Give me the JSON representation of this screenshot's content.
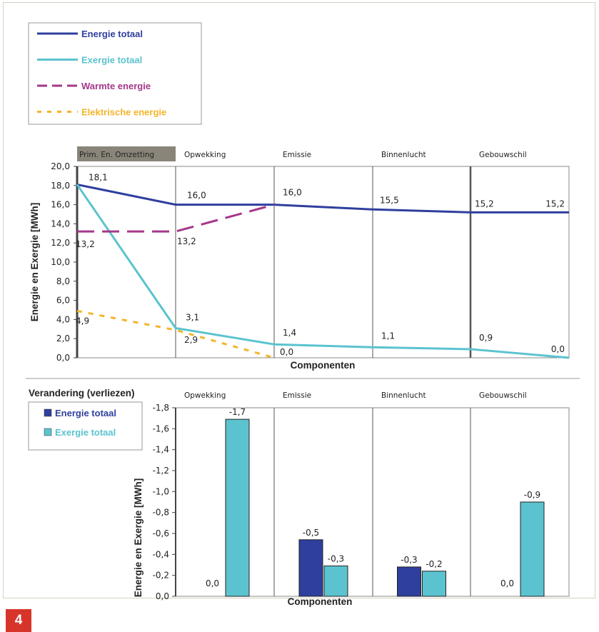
{
  "figure_number": "4",
  "colors": {
    "energie": "#2f3f9e",
    "exergie": "#5bc3cf",
    "warmte": "#a5378a",
    "elektrisch": "#f3b52a",
    "badge": "#d8352a",
    "header_box": "#8a8579"
  },
  "legend_top": [
    {
      "label": "Energie totaal",
      "color": "#2f3f9e",
      "style": "solid"
    },
    {
      "label": "Exergie totaal",
      "color": "#5bc3cf",
      "style": "solid"
    },
    {
      "label": "Warmte energie",
      "color": "#a5378a",
      "style": "dashed"
    },
    {
      "label": "Elektrische energie",
      "color": "#f3b52a",
      "style": "dotted"
    }
  ],
  "legend_bottom": [
    {
      "label": "Energie totaal",
      "color": "#2f3f9e"
    },
    {
      "label": "Exergie totaal",
      "color": "#5bc3cf"
    }
  ],
  "chart_data": [
    {
      "type": "line",
      "components": [
        "Prim. En. Omzetting",
        "Opwekking",
        "Emissie",
        "Binnenlucht",
        "Gebouwschil"
      ],
      "x": [
        0,
        1,
        2,
        3,
        4,
        5
      ],
      "xlabel": "Componenten",
      "ylabel": "Energie en Exergie [MWh]",
      "ylim": [
        0,
        20
      ],
      "yticks": [
        "20,0",
        "18,0",
        "16,0",
        "14,0",
        "12,0",
        "10,0",
        "8,0",
        "6,0",
        "4,0",
        "2,0",
        "0,0"
      ],
      "series": [
        {
          "name": "Energie totaal",
          "x": [
            0,
            1,
            2,
            3,
            4,
            5
          ],
          "values": [
            18.1,
            16.0,
            16.0,
            15.5,
            15.2,
            15.2
          ],
          "labels": [
            "18,1",
            "16,0",
            "16,0",
            "15,5",
            "15,2",
            "15,2"
          ]
        },
        {
          "name": "Exergie totaal",
          "x": [
            0,
            1,
            2,
            3,
            4,
            5
          ],
          "values": [
            18.1,
            3.1,
            1.4,
            1.1,
            0.9,
            0.0
          ],
          "labels": [
            "",
            "3,1",
            "1,4",
            "1,1",
            "0,9",
            "0,0"
          ]
        },
        {
          "name": "Warmte energie",
          "x": [
            0,
            1,
            2
          ],
          "values": [
            13.2,
            13.2,
            16.0
          ],
          "labels": [
            "13,2",
            "13,2",
            ""
          ]
        },
        {
          "name": "Elektrische energie",
          "x": [
            0,
            1,
            2
          ],
          "values": [
            4.9,
            2.9,
            0.0
          ],
          "labels": [
            "4,9",
            "2,9",
            "0,0"
          ]
        }
      ]
    },
    {
      "type": "bar",
      "title": "Verandering (verliezen)",
      "categories": [
        "Opwekking",
        "Emissie",
        "Binnenlucht",
        "Gebouwschil"
      ],
      "xlabel": "Componenten",
      "ylabel": "Energie en Exergie [MWh]",
      "ylim": [
        0,
        -1.8
      ],
      "yticks": [
        "-1,8",
        "-1,6",
        "-1,4",
        "-1,2",
        "-1,0",
        "-0,8",
        "-0,6",
        "-0,4",
        "-0,2",
        "0,0"
      ],
      "series": [
        {
          "name": "Energie totaal",
          "values": [
            0.0,
            -0.54,
            -0.28,
            0.0
          ],
          "labels": [
            "0,0",
            "-0,5",
            "-0,3",
            "0,0"
          ]
        },
        {
          "name": "Exergie totaal",
          "values": [
            -1.69,
            -0.29,
            -0.24,
            -0.9
          ],
          "labels": [
            "-1,7",
            "-0,3",
            "-0,2",
            "-0,9"
          ]
        }
      ]
    }
  ]
}
